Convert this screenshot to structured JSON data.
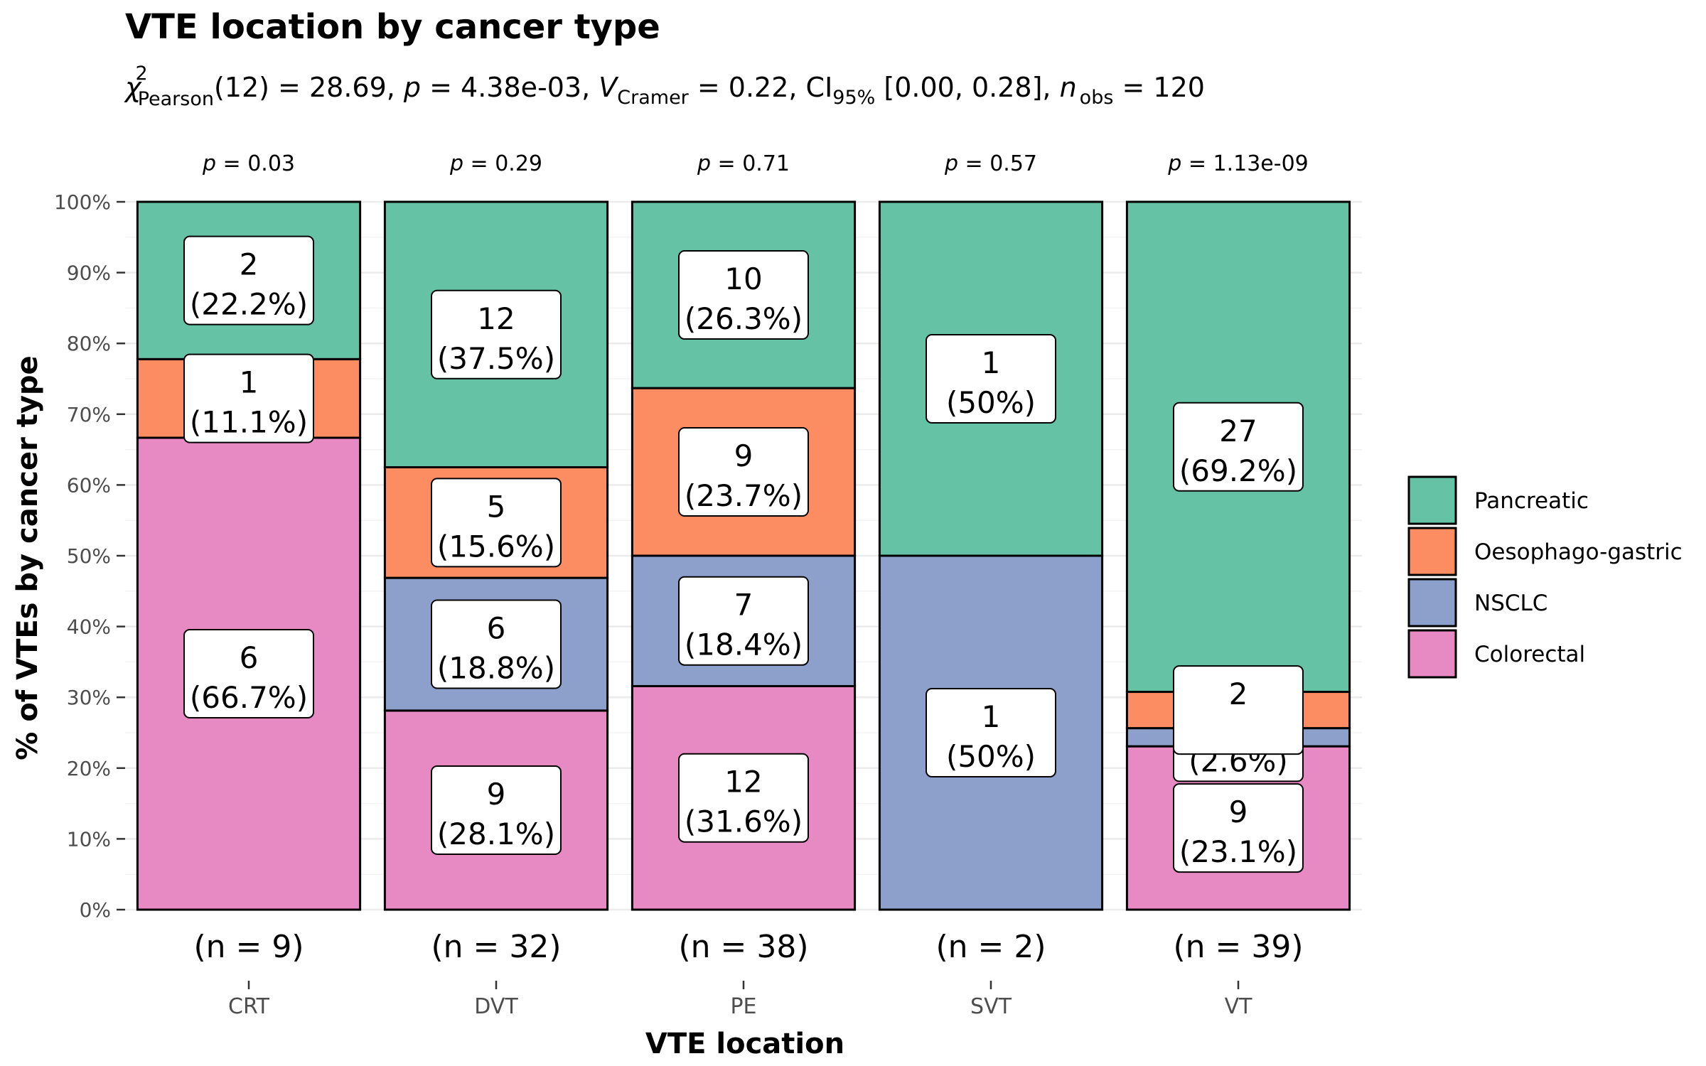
{
  "chart_data": {
    "type": "bar",
    "stacked": true,
    "percent": true,
    "title": "VTE location by cancer type",
    "subtitle": {
      "chi": "χ",
      "chi_sup": "2",
      "chi_sub": "Pearson",
      "df": "(12) = 28.69, ",
      "p_sym": "p",
      "p_val": " = 4.38e-03, ",
      "v_hat": "^",
      "v_sym": "V",
      "v_sub": "Cramer",
      "v_val": " = 0.22, CI",
      "ci_sub": "95%",
      "ci_val": " [0.00, 0.28], ",
      "n_sym": "n",
      "n_sub": "obs",
      "n_val": " = 120"
    },
    "xlabel": "VTE location",
    "ylabel": "% of VTEs by cancer type",
    "ylim": [
      0,
      100
    ],
    "yticks": [
      "0%",
      "10%",
      "20%",
      "30%",
      "40%",
      "50%",
      "60%",
      "70%",
      "80%",
      "90%",
      "100%"
    ],
    "categories": [
      "CRT",
      "DVT",
      "PE",
      "SVT",
      "VT"
    ],
    "n_labels": [
      "(n = 9)",
      "(n = 32)",
      "(n = 38)",
      "(n = 2)",
      "(n = 39)"
    ],
    "p_labels": [
      {
        "sym": "p",
        "val": " = 0.03"
      },
      {
        "sym": "p",
        "val": " = 0.29"
      },
      {
        "sym": "p",
        "val": " = 0.71"
      },
      {
        "sym": "p",
        "val": " = 0.57"
      },
      {
        "sym": "p",
        "val": " = 1.13e-09"
      }
    ],
    "series": [
      {
        "name": "Colorectal",
        "color": "#e78ac3",
        "counts": [
          6,
          9,
          12,
          0,
          9
        ],
        "labels": [
          [
            "6",
            "(66.7%)"
          ],
          [
            "9",
            "(28.1%)"
          ],
          [
            "12",
            "(31.6%)"
          ],
          null,
          [
            "9",
            "(23.1%)"
          ]
        ]
      },
      {
        "name": "NSCLC",
        "color": "#8da0cb",
        "counts": [
          0,
          6,
          7,
          1,
          1
        ],
        "labels": [
          null,
          [
            "6",
            "(18.8%)"
          ],
          [
            "7",
            "(18.4%)"
          ],
          [
            "1",
            "(50%)"
          ],
          [
            "1",
            "(2.6%)"
          ]
        ]
      },
      {
        "name": "Oesophago-gastric",
        "color": "#fc8d62",
        "counts": [
          1,
          5,
          9,
          0,
          2
        ],
        "labels": [
          [
            "1",
            "(11.1%)"
          ],
          [
            "5",
            "(15.6%)"
          ],
          [
            "9",
            "(23.7%)"
          ],
          null,
          [
            "2",
            ""
          ]
        ]
      },
      {
        "name": "Pancreatic",
        "color": "#66c2a5",
        "counts": [
          2,
          12,
          10,
          1,
          27
        ],
        "labels": [
          [
            "2",
            "(22.2%)"
          ],
          [
            "12",
            "(37.5%)"
          ],
          [
            "10",
            "(26.3%)"
          ],
          [
            "1",
            "(50%)"
          ],
          [
            "27",
            "(69.2%)"
          ]
        ]
      }
    ],
    "legend": {
      "position": "right",
      "order": [
        "Pancreatic",
        "Oesophago-gastric",
        "NSCLC",
        "Colorectal"
      ]
    },
    "grid": true
  }
}
